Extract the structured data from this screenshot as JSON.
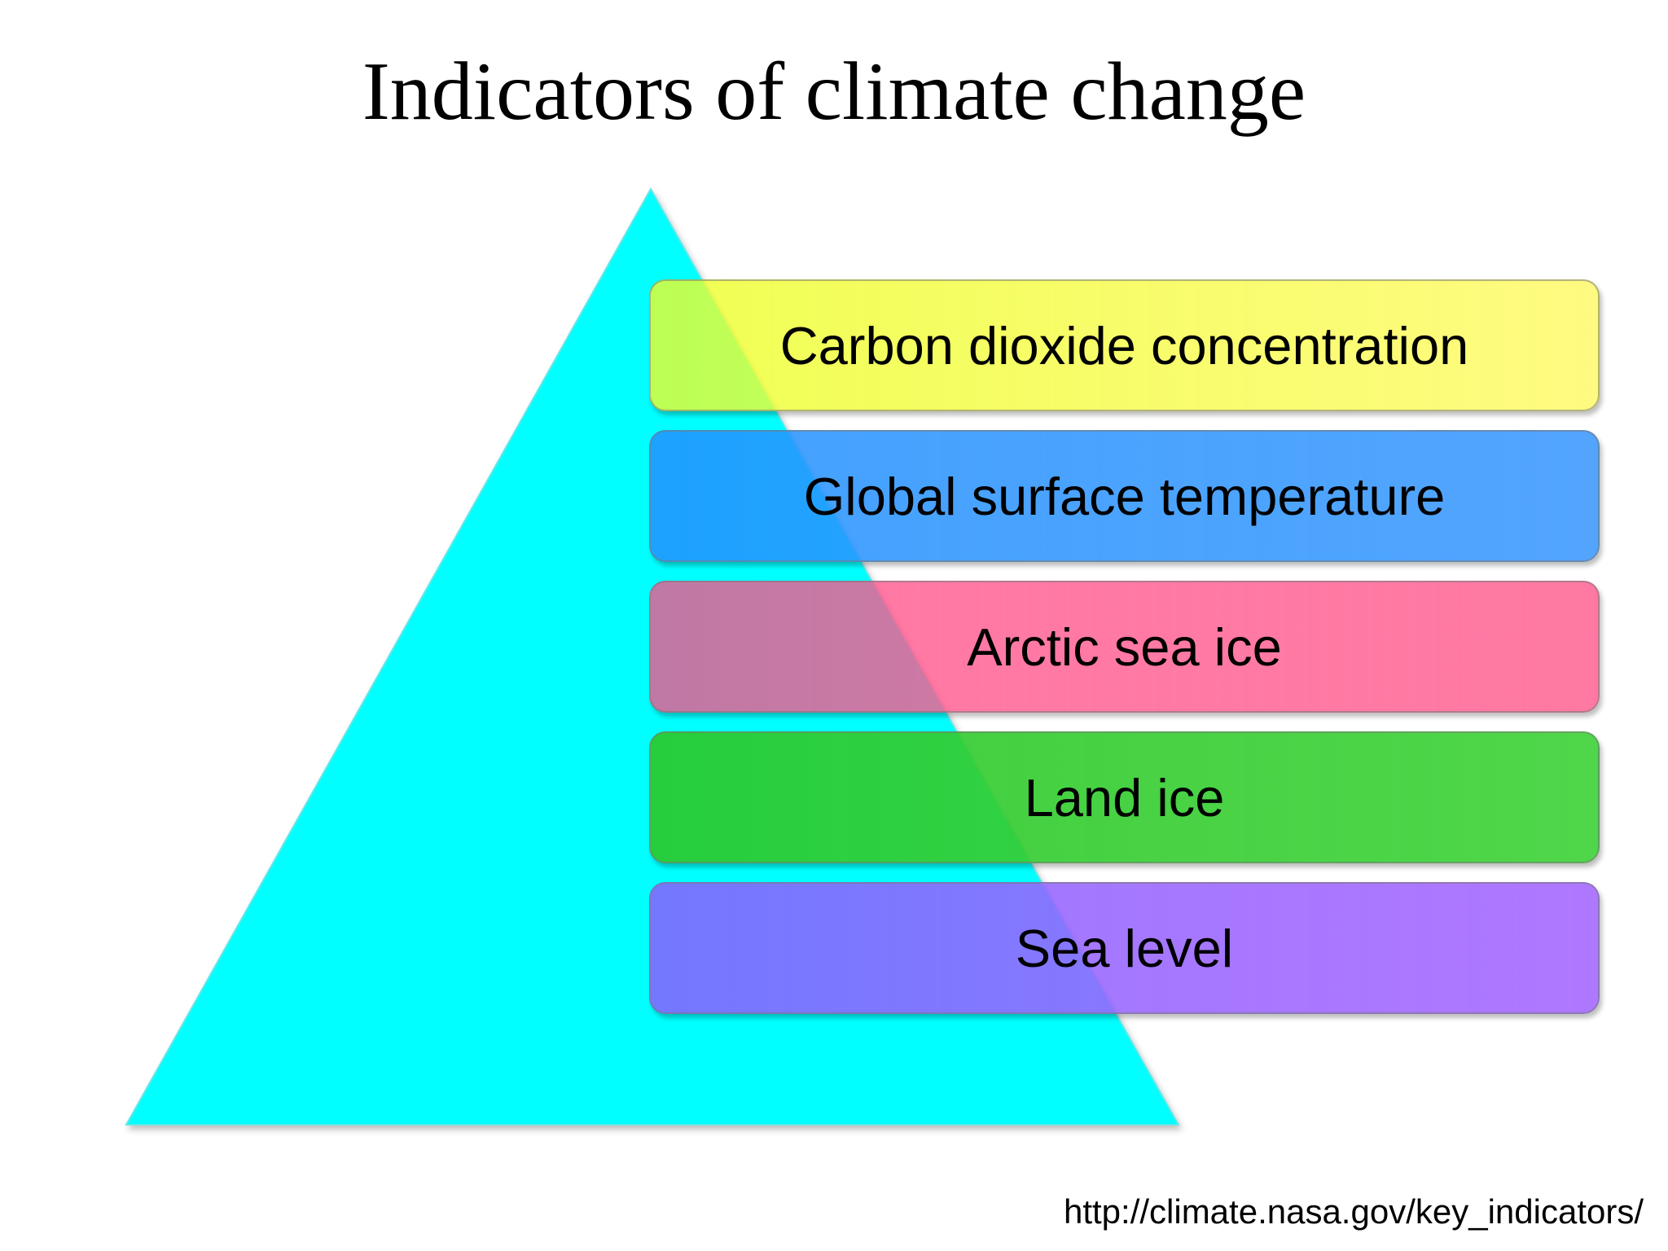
{
  "title": "Indicators of climate change",
  "colors": {
    "pyramid": "#00FFFF",
    "band_1": "#F0FF50",
    "band_2": "#3C9BFF",
    "band_3": "#FF6E9B",
    "band_4": "#3CCC3C",
    "band_5": "#9C6CFF"
  },
  "indicators": [
    {
      "label": "Carbon dioxide concentration"
    },
    {
      "label": "Global surface temperature"
    },
    {
      "label": "Arctic sea ice"
    },
    {
      "label": "Land ice"
    },
    {
      "label": "Sea level"
    }
  ],
  "source": "http://climate.nasa.gov/key_indicators/"
}
